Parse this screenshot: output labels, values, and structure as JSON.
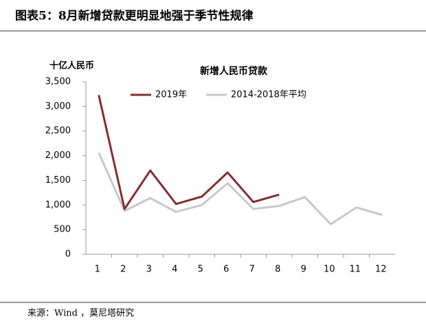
{
  "chart_data": {
    "type": "line",
    "title": "图表5：8月新增贷款更明显地强于季节性规律",
    "chart_title": "新增人民币贷款",
    "y_label": "十亿人民币",
    "source": "来源：Wind ，莫尼塔研究",
    "categories": [
      "1",
      "2",
      "3",
      "4",
      "5",
      "6",
      "7",
      "8",
      "9",
      "10",
      "11",
      "12"
    ],
    "series": [
      {
        "name": "2019年",
        "color": "#8b2a2a",
        "values": [
          3230,
          920,
          1700,
          1020,
          1170,
          1660,
          1060,
          1210,
          null,
          null,
          null,
          null
        ]
      },
      {
        "name": "2014-2018年平均",
        "color": "#c8c8c8",
        "values": [
          2060,
          880,
          1140,
          860,
          1000,
          1440,
          920,
          980,
          1160,
          610,
          950,
          800
        ]
      }
    ],
    "ylim": [
      0,
      3500
    ],
    "yticks": [
      0,
      500,
      {
        "value": 1000,
        "label": "1,000"
      },
      {
        "value": 1500,
        "label": "1,500"
      },
      {
        "value": 2000,
        "label": "2,000"
      },
      {
        "value": 2500,
        "label": "2,500"
      },
      {
        "value": 3000,
        "label": "3,000"
      },
      {
        "value": 3500,
        "label": "3,500"
      }
    ],
    "grid": false,
    "legend": "top"
  }
}
